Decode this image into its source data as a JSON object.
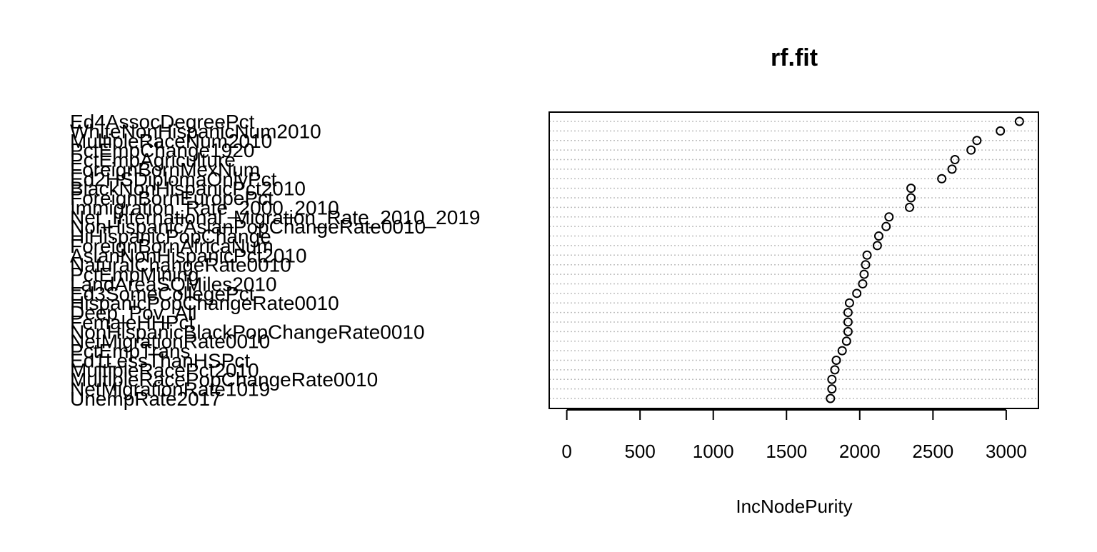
{
  "chart_data": {
    "type": "scatter",
    "subtype": "dotchart",
    "title": "rf.fit",
    "xlabel": "IncNodePurity",
    "ylabel": "",
    "xticks": [
      0,
      500,
      1000,
      1500,
      2000,
      2500,
      3000
    ],
    "xlim": [
      -120,
      3220
    ],
    "grid": "dotted horizontal lines",
    "marker": "open-circle",
    "variables": [
      "Ed4AssocDegreePct",
      "WhiteNonHispanicNum2010",
      "MultipleRaceNum2010",
      "PctEmpChange1920",
      "PctEmpAgriculture",
      "ForeignBornMexNum",
      "Ed2HSDiplomaOnlyPct",
      "BlackNonHispanicPct2010",
      "ForeignBornEuropePct",
      "Immigration_Rate_2000_2010",
      "Net_International_Migration_Rate_2010_2019",
      "NonHispanicAsianPopChangeRate0010",
      "HiHispanicPopChange",
      "ForeignBornAfricaNum",
      "AsianNonHispanicPct2010",
      "NaturalChangeRate0010",
      "PctEmpMining",
      "LandAreaSQMiles2010",
      "Ed3SomeCollegePct",
      "HispanicPopChangeRate0010",
      "Deep_Pov_All",
      "FemaleHHPct",
      "NonHispanicBlackPopChangeRate0010",
      "NetMigrationRate0010",
      "PctEmpTrans",
      "Ed1LessThanHSPct",
      "MultipleRacePct2010",
      "MultipleRacePopChangeRate0010",
      "NetMigrationRate1019",
      "UnempRate2017"
    ],
    "values": [
      3090,
      2960,
      2800,
      2760,
      2650,
      2630,
      2560,
      2350,
      2350,
      2340,
      2200,
      2180,
      2130,
      2120,
      2050,
      2040,
      2030,
      2020,
      1980,
      1930,
      1920,
      1920,
      1920,
      1910,
      1880,
      1840,
      1830,
      1810,
      1810,
      1800
    ]
  }
}
